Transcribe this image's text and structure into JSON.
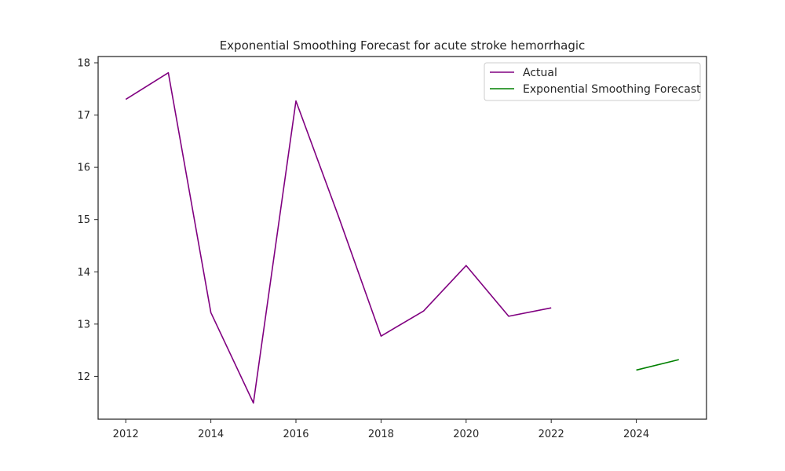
{
  "chart_data": {
    "type": "line",
    "title": "Exponential Smoothing Forecast for acute stroke hemorrhagic",
    "xlabel": "",
    "ylabel": "",
    "xlim": [
      2011.35,
      2025.65
    ],
    "ylim": [
      11.18,
      18.12
    ],
    "x_ticks": [
      2012,
      2014,
      2016,
      2018,
      2020,
      2022,
      2024
    ],
    "y_ticks": [
      12,
      13,
      14,
      15,
      16,
      17,
      18
    ],
    "grid": false,
    "legend_position": "top-right",
    "series": [
      {
        "name": "Actual",
        "color": "#800080",
        "x": [
          2012,
          2013,
          2014,
          2015,
          2016,
          2017,
          2018,
          2019,
          2020,
          2021,
          2022
        ],
        "y": [
          17.3,
          17.81,
          13.22,
          11.49,
          17.27,
          15.06,
          12.77,
          13.25,
          14.12,
          13.15,
          13.31
        ]
      },
      {
        "name": "Exponential Smoothing Forecast",
        "color": "#008000",
        "x": [
          2024,
          2025
        ],
        "y": [
          12.12,
          12.32
        ]
      }
    ]
  }
}
